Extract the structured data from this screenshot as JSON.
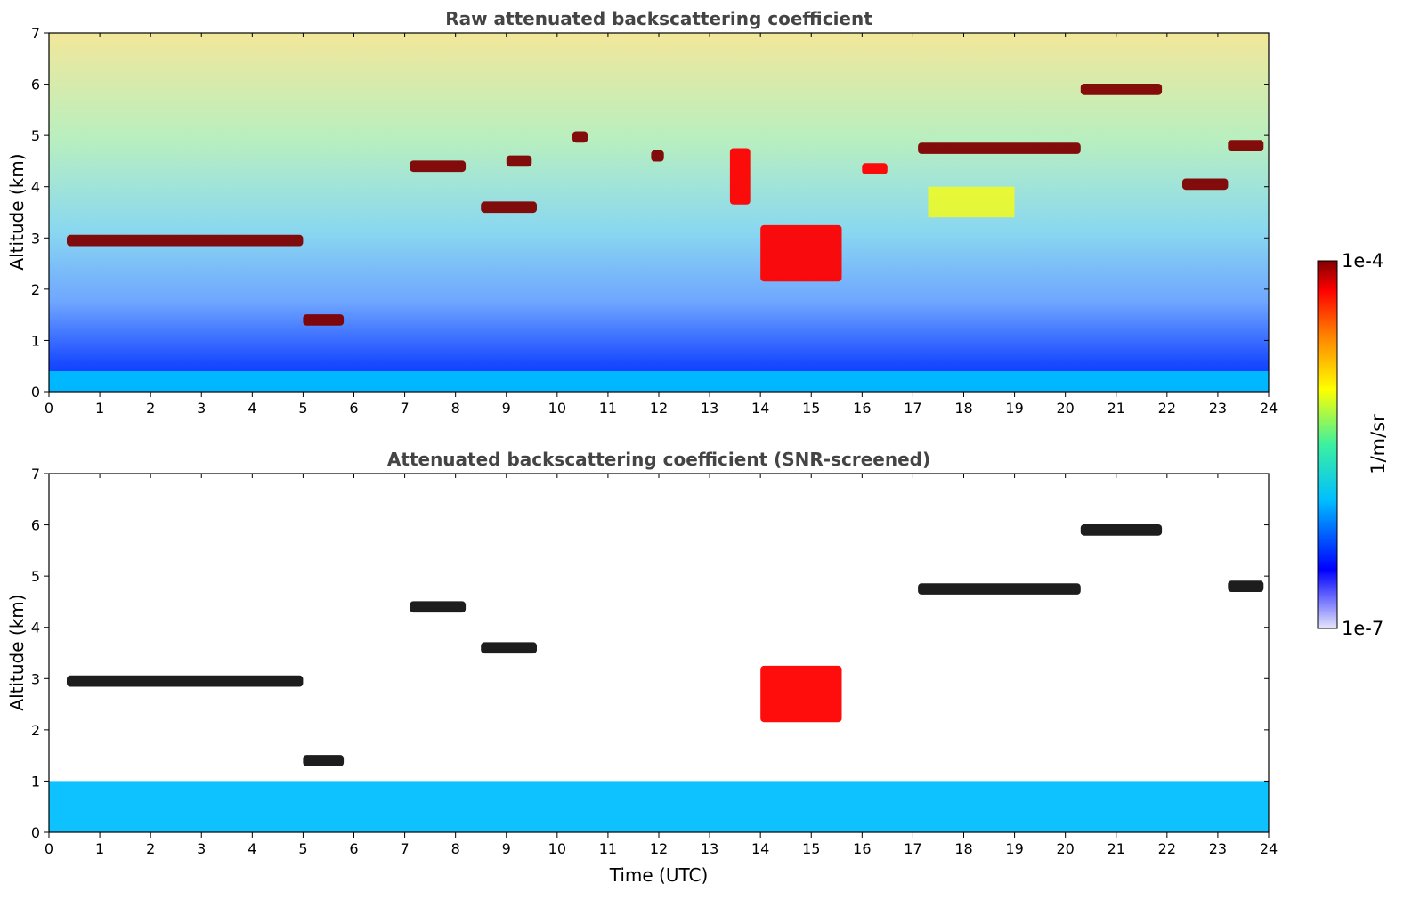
{
  "chart_data": [
    {
      "type": "heatmap",
      "title": "Raw attenuated backscattering coefficient",
      "xlabel": "",
      "ylabel": "Altitude (km)",
      "xlim": [
        0,
        24
      ],
      "ylim": [
        0,
        7
      ],
      "x_ticks": [
        "0",
        "1",
        "2",
        "3",
        "4",
        "5",
        "6",
        "7",
        "8",
        "9",
        "10",
        "11",
        "12",
        "13",
        "14",
        "15",
        "16",
        "17",
        "18",
        "19",
        "20",
        "21",
        "22",
        "23",
        "24"
      ],
      "y_ticks": [
        "0",
        "1",
        "2",
        "3",
        "4",
        "5",
        "6",
        "7"
      ],
      "colorscale": "jet",
      "features": [
        {
          "kind": "cloud",
          "t": [
            0.35,
            5.0
          ],
          "alt": 2.95,
          "level": 1.0
        },
        {
          "kind": "cloud",
          "t": [
            5.0,
            5.8
          ],
          "alt": 1.4,
          "level": 1.0
        },
        {
          "kind": "cloud",
          "t": [
            7.1,
            8.2
          ],
          "alt": 4.4,
          "level": 1.0
        },
        {
          "kind": "cloud",
          "t": [
            8.5,
            9.6
          ],
          "alt": 3.6,
          "level": 1.0
        },
        {
          "kind": "cloud",
          "t": [
            9.0,
            9.5
          ],
          "alt": 4.5,
          "level": 0.95
        },
        {
          "kind": "cloud",
          "t": [
            10.3,
            10.6
          ],
          "alt": 4.97,
          "level": 0.95
        },
        {
          "kind": "cloud",
          "t": [
            11.85,
            12.1
          ],
          "alt": 4.6,
          "level": 0.95
        },
        {
          "kind": "cloud",
          "t": [
            13.4,
            13.8
          ],
          "alt": 4.2,
          "level": 0.85
        },
        {
          "kind": "cloud",
          "t": [
            14.0,
            15.6
          ],
          "alt": 2.7,
          "level": 0.8
        },
        {
          "kind": "cloud",
          "t": [
            16.0,
            16.5
          ],
          "alt": 4.35,
          "level": 0.9
        },
        {
          "kind": "cloud",
          "t": [
            17.1,
            20.3
          ],
          "alt": 4.75,
          "level": 1.0
        },
        {
          "kind": "cloud",
          "t": [
            20.3,
            21.9
          ],
          "alt": 5.9,
          "level": 1.0
        },
        {
          "kind": "cloud",
          "t": [
            22.3,
            23.2
          ],
          "alt": 4.05,
          "level": 1.0
        },
        {
          "kind": "cloud",
          "t": [
            23.2,
            23.9
          ],
          "alt": 4.8,
          "level": 1.0
        },
        {
          "kind": "aerosol",
          "t": [
            17.3,
            19.0
          ],
          "alt": 3.7,
          "level": 0.55
        },
        {
          "kind": "boundary-layer",
          "t": [
            0,
            24
          ],
          "alt": 0.3,
          "level": 0.3
        }
      ]
    },
    {
      "type": "heatmap",
      "title": "Attenuated backscattering coefficient (SNR-screened)",
      "xlabel": "Time (UTC)",
      "ylabel": "Altitude (km)",
      "xlim": [
        0,
        24
      ],
      "ylim": [
        0,
        7
      ],
      "x_ticks": [
        "0",
        "1",
        "2",
        "3",
        "4",
        "5",
        "6",
        "7",
        "8",
        "9",
        "10",
        "11",
        "12",
        "13",
        "14",
        "15",
        "16",
        "17",
        "18",
        "19",
        "20",
        "21",
        "22",
        "23",
        "24"
      ],
      "y_ticks": [
        "0",
        "1",
        "2",
        "3",
        "4",
        "5",
        "6",
        "7"
      ],
      "colorscale": "jet",
      "features": [
        {
          "kind": "cloud",
          "t": [
            0.35,
            5.0
          ],
          "alt": 2.95,
          "level": 1.0
        },
        {
          "kind": "cloud",
          "t": [
            5.0,
            5.8
          ],
          "alt": 1.4,
          "level": 1.0
        },
        {
          "kind": "cloud",
          "t": [
            7.1,
            8.2
          ],
          "alt": 4.4,
          "level": 1.0
        },
        {
          "kind": "cloud",
          "t": [
            8.5,
            9.6
          ],
          "alt": 3.6,
          "level": 1.0
        },
        {
          "kind": "cloud",
          "t": [
            14.0,
            15.6
          ],
          "alt": 2.7,
          "level": 0.8
        },
        {
          "kind": "cloud",
          "t": [
            17.1,
            20.3
          ],
          "alt": 4.75,
          "level": 1.0
        },
        {
          "kind": "cloud",
          "t": [
            20.3,
            21.9
          ],
          "alt": 5.9,
          "level": 1.0
        },
        {
          "kind": "cloud",
          "t": [
            23.2,
            23.9
          ],
          "alt": 4.8,
          "level": 1.0
        },
        {
          "kind": "boundary-layer",
          "t": [
            0,
            24
          ],
          "alt": 0.5,
          "level": 0.25
        }
      ]
    }
  ],
  "colorbar": {
    "label": "1/m/sr",
    "max_label": "1e-4",
    "min_label": "1e-7",
    "range": [
      1e-07,
      0.0001
    ],
    "scale": "log",
    "colors": [
      "#e6e6fa",
      "#0000ff",
      "#00bfff",
      "#3cf0a0",
      "#ffff00",
      "#ff7f00",
      "#ff0000",
      "#800000"
    ]
  }
}
